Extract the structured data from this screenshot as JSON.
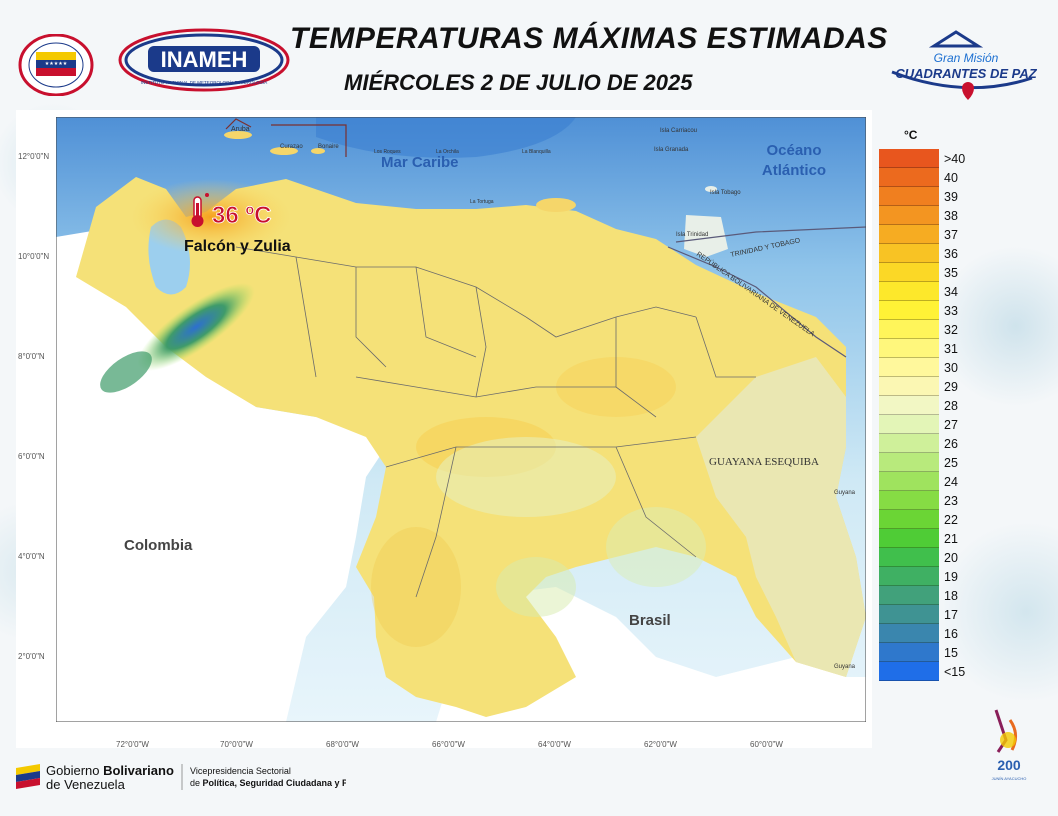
{
  "header": {
    "title": "TEMPERATURAS MÁXIMAS ESTIMADAS",
    "subtitle": "MIÉRCOLES 2 DE JULIO DE 2025",
    "inameh_logo_text": "INAMEH",
    "inameh_logo_subtext": "INSTITUTO NACIONAL DE METEOROLOGÍA E HIDROLOGÍA",
    "cuadrantes_line1": "Gran Misión",
    "cuadrantes_line2": "CUADRANTES DE PAZ"
  },
  "map": {
    "highlight_value": "36 ºC",
    "highlight_region": "Falcón y Zulia",
    "labels": {
      "mar_caribe": "Mar Caribe",
      "oceano": "Océano",
      "atlantico": "Atlántico",
      "colombia": "Colombia",
      "brasil": "Brasil",
      "guayana_esequiba": "GUAYANA ESEQUIBA",
      "trinidad_y_tobago": "TRINIDAD Y TOBAGO",
      "republica": "REPÚBLICA BOLIVARIANA DE VENEZUELA",
      "aruba": "Aruba",
      "curazao": "Curazao",
      "bonaire": "Bonaire",
      "los_roques": "Los Roques",
      "la_orchila": "La Orchila",
      "la_blanquilla": "La Blanquilla",
      "la_tortuga": "La Tortuga",
      "isla_carriacou": "Isla Carriacou",
      "isla_granada": "Isla Granada",
      "isla_tobago": "Isla Tobago",
      "isla_trinidad": "Isla Trinidad",
      "guyana_1": "Guyana",
      "guyana_2": "Guyana"
    },
    "lat_ticks": [
      "12°0'0\"N",
      "10°0'0\"N",
      "8°0'0\"N",
      "6°0'0\"N",
      "4°0'0\"N",
      "2°0'0\"N"
    ],
    "lon_ticks": [
      "72°0'0\"W",
      "70°0'0\"W",
      "68°0'0\"W",
      "66°0'0\"W",
      "64°0'0\"W",
      "62°0'0\"W",
      "60°0'0\"W"
    ]
  },
  "legend": {
    "unit": "°C",
    "items": [
      {
        "label": ">40",
        "color": "#e8561e"
      },
      {
        "label": "40",
        "color": "#ec6a1e"
      },
      {
        "label": "39",
        "color": "#f07f1f"
      },
      {
        "label": "38",
        "color": "#f39521"
      },
      {
        "label": "37",
        "color": "#f6ac22"
      },
      {
        "label": "36",
        "color": "#f8c324"
      },
      {
        "label": "35",
        "color": "#fbd826"
      },
      {
        "label": "34",
        "color": "#fde82b"
      },
      {
        "label": "33",
        "color": "#fff236"
      },
      {
        "label": "32",
        "color": "#fff55a"
      },
      {
        "label": "31",
        "color": "#fff77c"
      },
      {
        "label": "30",
        "color": "#fff89c"
      },
      {
        "label": "29",
        "color": "#fbf7b3"
      },
      {
        "label": "28",
        "color": "#f2f7c4"
      },
      {
        "label": "27",
        "color": "#e3f5b7"
      },
      {
        "label": "26",
        "color": "#cff09a"
      },
      {
        "label": "25",
        "color": "#b8ea7c"
      },
      {
        "label": "24",
        "color": "#9fe35e"
      },
      {
        "label": "23",
        "color": "#86dc44"
      },
      {
        "label": "22",
        "color": "#6bd535"
      },
      {
        "label": "21",
        "color": "#4fcc36"
      },
      {
        "label": "20",
        "color": "#40bf4c"
      },
      {
        "label": "19",
        "color": "#3fb063"
      },
      {
        "label": "18",
        "color": "#41a17b"
      },
      {
        "label": "17",
        "color": "#3f9393"
      },
      {
        "label": "16",
        "color": "#3a86ae"
      },
      {
        "label": "15",
        "color": "#2f78cc"
      },
      {
        "label": "<15",
        "color": "#1f6ee8"
      }
    ]
  },
  "footer": {
    "gov_line1_a": "Gobierno ",
    "gov_line1_b": "Bolivariano",
    "gov_line2": "de Venezuela",
    "vice_line1": "Vicepresidencia Sectorial",
    "vice_line2_a": "de ",
    "vice_line2_b": "Política, Seguridad Ciudadana y Paz",
    "bicentenario_num": "200",
    "bicentenario_text": "JUNÍN AYACUCHO"
  }
}
